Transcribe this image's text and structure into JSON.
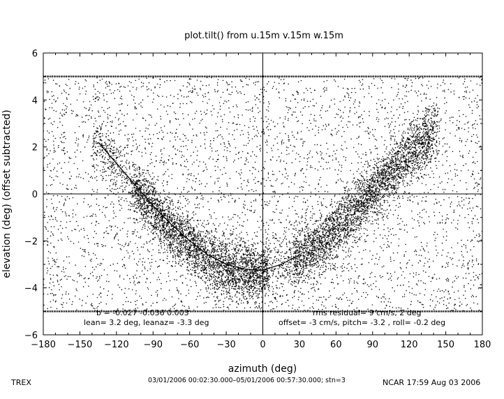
{
  "chart_data": {
    "type": "scatter",
    "title": "plot.tilt() from u.15m v.15m w.15m",
    "xlabel": "azimuth (deg)",
    "ylabel": "elevation (deg)  (offset subtracted)",
    "xlim": [
      -180,
      180
    ],
    "ylim": [
      -6,
      6
    ],
    "xticks": [
      -180,
      -150,
      -120,
      -90,
      -60,
      -30,
      0,
      30,
      60,
      90,
      120,
      150,
      180
    ],
    "yticks": [
      -6,
      -4,
      -2,
      0,
      2,
      4,
      6
    ],
    "grid": false,
    "reference_lines": {
      "x": 0,
      "y": 0
    },
    "clip_lines": [
      5,
      -5
    ],
    "series": [
      {
        "kind": "points",
        "description_points": [
          {
            "x": -135,
            "y": 2.2
          },
          {
            "x": -120,
            "y": 1.2
          },
          {
            "x": -105,
            "y": 0.3
          },
          {
            "x": -90,
            "y": -0.6
          },
          {
            "x": -75,
            "y": -1.5
          },
          {
            "x": -60,
            "y": -2.2
          },
          {
            "x": -45,
            "y": -2.8
          },
          {
            "x": -30,
            "y": -3.2
          },
          {
            "x": -15,
            "y": -3.4
          },
          {
            "x": 0,
            "y": -3.3
          },
          {
            "x": 15,
            "y": -3.1
          },
          {
            "x": 30,
            "y": -2.7
          },
          {
            "x": 45,
            "y": -2.2
          },
          {
            "x": 60,
            "y": -1.5
          },
          {
            "x": 75,
            "y": -0.7
          },
          {
            "x": 90,
            "y": 0.1
          },
          {
            "x": 105,
            "y": 0.9
          },
          {
            "x": 120,
            "y": 1.7
          },
          {
            "x": 135,
            "y": 2.3
          }
        ]
      },
      {
        "kind": "fit",
        "x": [
          -135,
          -120,
          -105,
          -90,
          -75,
          -60,
          -45,
          -30,
          -15,
          0,
          15,
          30
        ],
        "y": [
          2.2,
          1.3,
          0.4,
          -0.5,
          -1.3,
          -2.0,
          -2.6,
          -3.0,
          -3.2,
          -3.25,
          -3.0,
          -2.6
        ]
      }
    ],
    "annotations": {
      "left_line1": "b = -0.027 -0.036  0.003",
      "left_line2": "lean= 3.2 deg, leanaz= -3.3 deg",
      "right_line1": "rms residual= 9 cm/s, 2 deg",
      "right_line2": "offset= -3 cm/s, pitch= -3.2 , roll= -0.2 deg"
    }
  },
  "footer": {
    "left": "TREX",
    "center": "03/01/2006 00:02:30.000–05/01/2006 00:57:30.000; stn=3",
    "right": "NCAR 17:59 Aug 03 2006"
  }
}
